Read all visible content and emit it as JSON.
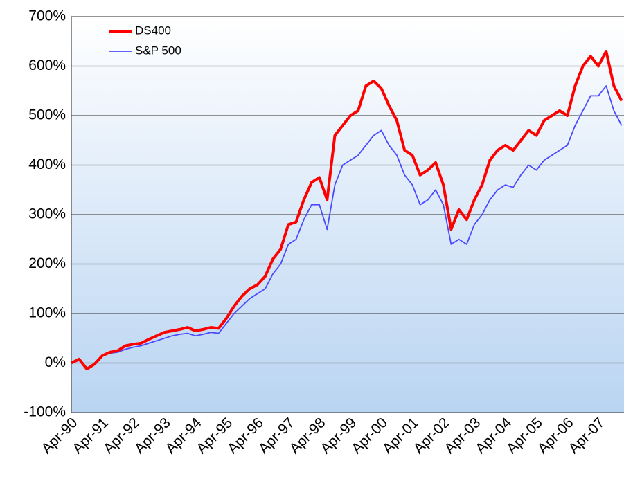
{
  "chart_data": {
    "type": "line",
    "categories": [
      "Apr-90",
      null,
      null,
      null,
      "Apr-91",
      null,
      null,
      null,
      "Apr-92",
      null,
      null,
      null,
      "Apr-93",
      null,
      null,
      null,
      "Apr-94",
      null,
      null,
      null,
      "Apr-95",
      null,
      null,
      null,
      "Apr-96",
      null,
      null,
      null,
      "Apr-97",
      null,
      null,
      null,
      "Apr-98",
      null,
      null,
      null,
      "Apr-99",
      null,
      null,
      null,
      "Apr-00",
      null,
      null,
      null,
      "Apr-01",
      null,
      null,
      null,
      "Apr-02",
      null,
      null,
      null,
      "Apr-03",
      null,
      null,
      null,
      "Apr-04",
      null,
      null,
      null,
      "Apr-05",
      null,
      null,
      null,
      "Apr-06",
      null,
      null,
      null,
      "Apr-07",
      null,
      null,
      null
    ],
    "series": [
      {
        "name": "DS400",
        "color": "#ff0000",
        "values": [
          0,
          8,
          -12,
          -2,
          15,
          22,
          25,
          35,
          38,
          40,
          48,
          55,
          62,
          65,
          68,
          72,
          65,
          68,
          72,
          70,
          90,
          115,
          135,
          150,
          158,
          175,
          210,
          230,
          280,
          285,
          330,
          365,
          375,
          330,
          460,
          480,
          500,
          510,
          560,
          570,
          555,
          520,
          490,
          430,
          420,
          380,
          390,
          405,
          360,
          270,
          310,
          290,
          330,
          360,
          410,
          430,
          440,
          430,
          450,
          470,
          460,
          490,
          500,
          510,
          500,
          560,
          600,
          620,
          600,
          630,
          560,
          530
        ]
      },
      {
        "name": "S&P 500",
        "color": "#4a4aff",
        "values": [
          0,
          5,
          -10,
          -3,
          15,
          20,
          22,
          28,
          32,
          35,
          40,
          45,
          50,
          55,
          58,
          60,
          55,
          58,
          62,
          60,
          80,
          100,
          115,
          130,
          140,
          150,
          180,
          200,
          240,
          250,
          290,
          320,
          320,
          270,
          360,
          400,
          410,
          420,
          440,
          460,
          470,
          440,
          420,
          380,
          360,
          320,
          330,
          350,
          320,
          240,
          250,
          240,
          280,
          300,
          330,
          350,
          360,
          355,
          380,
          400,
          390,
          410,
          420,
          430,
          440,
          480,
          510,
          540,
          540,
          560,
          510,
          480
        ]
      }
    ],
    "ylim": [
      -100,
      700
    ],
    "yticks": [
      {
        "value": -100,
        "label": "-100%"
      },
      {
        "value": 0,
        "label": "0%"
      },
      {
        "value": 100,
        "label": "100%"
      },
      {
        "value": 200,
        "label": "200%"
      },
      {
        "value": 300,
        "label": "300%"
      },
      {
        "value": 400,
        "label": "400%"
      },
      {
        "value": 500,
        "label": "500%"
      },
      {
        "value": 600,
        "label": "600%"
      },
      {
        "value": 700,
        "label": "700%"
      }
    ],
    "grid": true,
    "legend": "upper left"
  }
}
